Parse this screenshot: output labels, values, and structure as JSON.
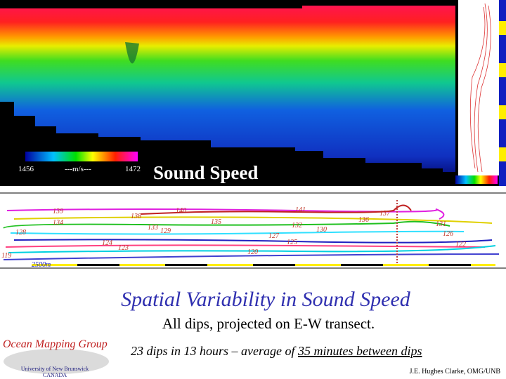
{
  "colorbar": {
    "min_label": "1456",
    "unit_label": "---m/s---",
    "max_label": "1472"
  },
  "panel_title": "Sound Speed",
  "track_labels": [
    "139",
    "134",
    "138",
    "140",
    "141",
    "137",
    "136",
    "131",
    "135",
    "133",
    "129",
    "132",
    "130",
    "127",
    "126",
    "128",
    "125",
    "124",
    "123",
    "122",
    "120",
    "119"
  ],
  "scale_label": "2500m",
  "title": "Spatial Variability in Sound Speed",
  "subtitle": "All dips, projected on E-W transect.",
  "stats": {
    "before": "23 dips in 13 hours – average of ",
    "underlined": "35 minutes between dips"
  },
  "logo": {
    "name": "Ocean Mapping Group",
    "university": "University of New Brunswick",
    "country": "CANADA"
  },
  "credit": "J.E. Hughes Clarke, OMG/UNB"
}
